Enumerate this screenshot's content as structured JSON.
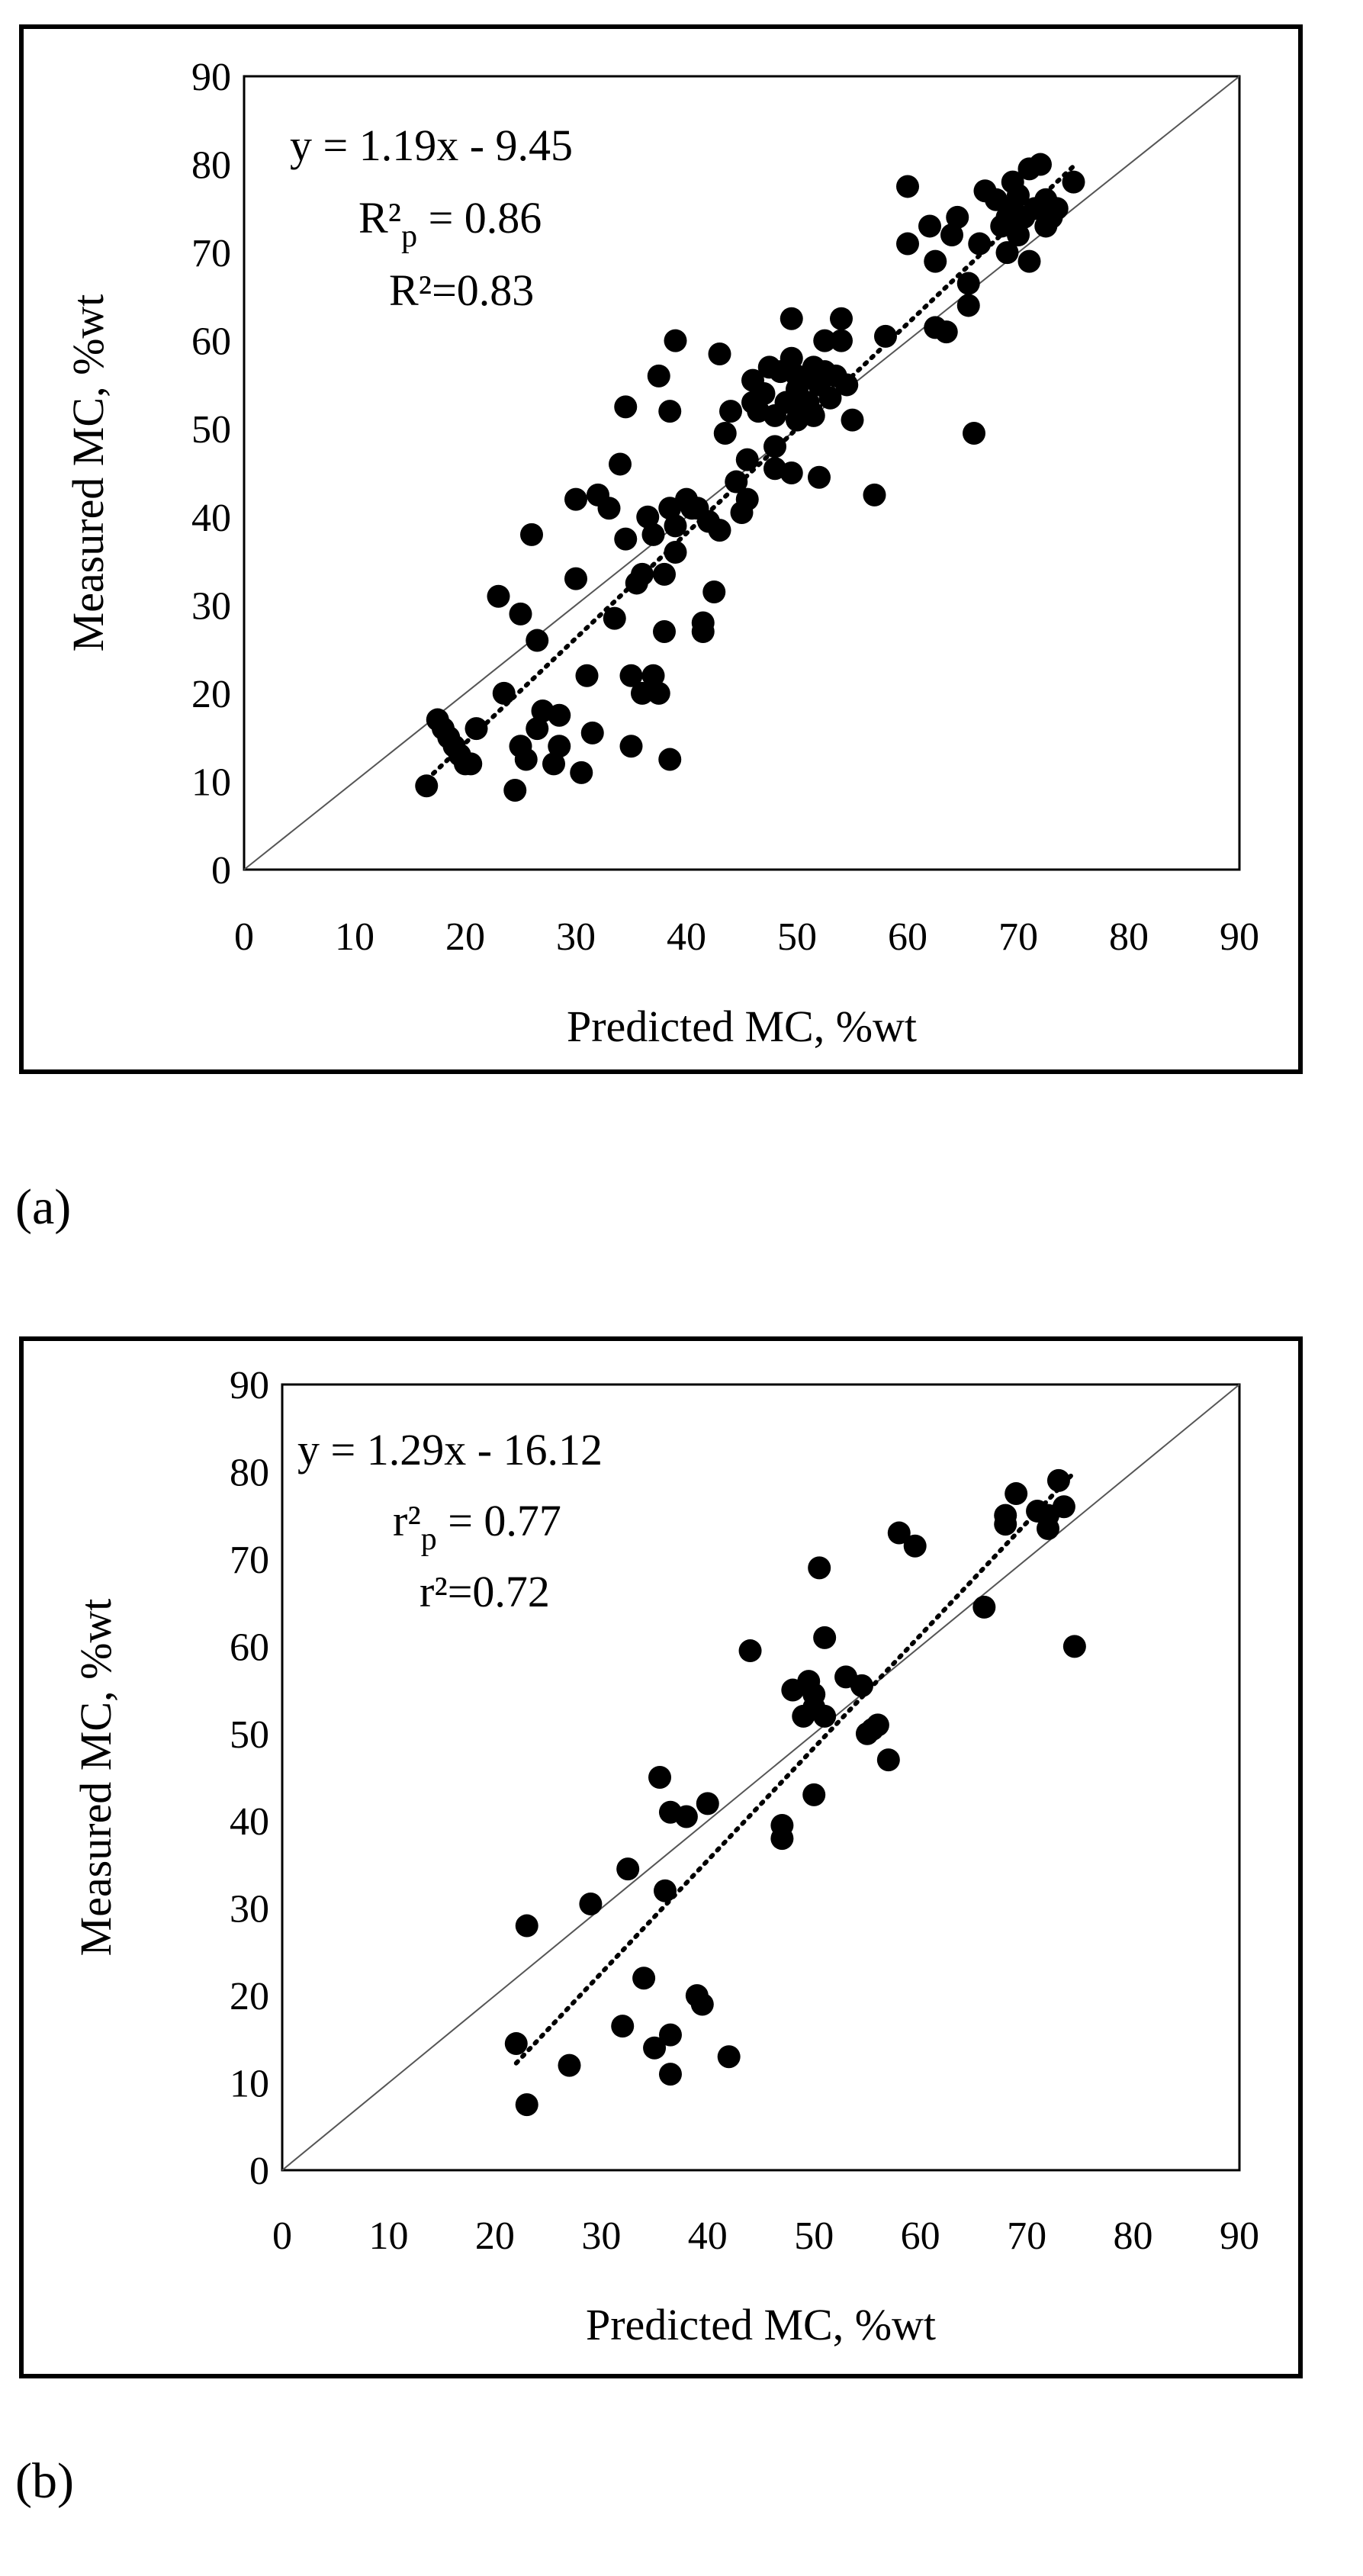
{
  "figure_labels": [
    "(a)",
    "(b)"
  ],
  "chart_data": [
    {
      "type": "scatter",
      "title": "",
      "xlabel": "Predicted MC, %wt",
      "ylabel": "Measured MC, %wt",
      "xlim": [
        0,
        90
      ],
      "ylim": [
        0,
        90
      ],
      "xticks": [
        "0",
        "10",
        "20",
        "30",
        "40",
        "50",
        "60",
        "70",
        "80",
        "90"
      ],
      "yticks": [
        "0",
        "10",
        "20",
        "30",
        "40",
        "50",
        "60",
        "70",
        "80",
        "90"
      ],
      "annotation_lines": [
        {
          "main": "y = 1.19x - 9.45"
        },
        {
          "main": "R²",
          "sub": "p",
          "rest": " = 0.86"
        },
        {
          "main": "R²=0.83"
        }
      ],
      "identity_line": [
        [
          0,
          0
        ],
        [
          90,
          90
        ]
      ],
      "trendline": {
        "slope": 1.19,
        "intercept": -9.45,
        "x_range": [
          16.5,
          75
        ]
      },
      "points": [
        [
          16.5,
          9.5
        ],
        [
          17.5,
          17
        ],
        [
          18,
          16
        ],
        [
          18.5,
          15
        ],
        [
          19,
          14
        ],
        [
          19.5,
          13
        ],
        [
          20,
          12
        ],
        [
          20.5,
          12
        ],
        [
          21,
          16
        ],
        [
          23,
          31
        ],
        [
          23.5,
          20
        ],
        [
          24.5,
          9
        ],
        [
          25,
          14
        ],
        [
          25,
          29
        ],
        [
          25.5,
          12.5
        ],
        [
          26,
          38
        ],
        [
          26.5,
          16
        ],
        [
          26.5,
          26
        ],
        [
          27,
          18
        ],
        [
          28,
          12
        ],
        [
          28.5,
          14
        ],
        [
          28.5,
          17.5
        ],
        [
          30,
          33
        ],
        [
          30,
          42
        ],
        [
          30.5,
          11
        ],
        [
          31,
          22
        ],
        [
          31.5,
          15.5
        ],
        [
          32,
          42.5
        ],
        [
          33,
          41
        ],
        [
          33.5,
          28.5
        ],
        [
          34,
          46
        ],
        [
          34.5,
          52.5
        ],
        [
          34.5,
          37.5
        ],
        [
          35,
          14
        ],
        [
          35,
          22
        ],
        [
          35.5,
          32.5
        ],
        [
          36,
          33.5
        ],
        [
          36,
          20
        ],
        [
          36.5,
          40
        ],
        [
          37,
          22
        ],
        [
          37,
          38
        ],
        [
          37.5,
          56
        ],
        [
          37.5,
          20
        ],
        [
          38,
          33.5
        ],
        [
          38,
          27
        ],
        [
          38.5,
          52
        ],
        [
          38.5,
          12.5
        ],
        [
          38.5,
          41
        ],
        [
          39,
          36
        ],
        [
          39,
          39
        ],
        [
          39,
          60
        ],
        [
          40,
          42
        ],
        [
          40.5,
          41
        ],
        [
          41,
          41
        ],
        [
          41.5,
          28
        ],
        [
          41.5,
          27
        ],
        [
          42,
          39.5
        ],
        [
          42.5,
          31.5
        ],
        [
          43,
          38.5
        ],
        [
          43,
          58.5
        ],
        [
          43.5,
          49.5
        ],
        [
          44,
          52
        ],
        [
          44.5,
          44
        ],
        [
          45,
          40.5
        ],
        [
          45.5,
          42
        ],
        [
          45.5,
          46.5
        ],
        [
          46,
          53
        ],
        [
          46,
          55.5
        ],
        [
          46.5,
          52
        ],
        [
          47,
          54
        ],
        [
          47.5,
          57
        ],
        [
          48,
          48
        ],
        [
          48,
          51.5
        ],
        [
          48,
          45.5
        ],
        [
          48.5,
          56.5
        ],
        [
          49,
          53
        ],
        [
          49.5,
          62.5
        ],
        [
          49.5,
          58
        ],
        [
          49.5,
          45
        ],
        [
          50,
          56
        ],
        [
          50,
          51
        ],
        [
          50,
          54.5
        ],
        [
          50.5,
          52
        ],
        [
          51,
          56
        ],
        [
          51,
          53
        ],
        [
          51.5,
          57
        ],
        [
          51.5,
          51.5
        ],
        [
          52,
          44.5
        ],
        [
          52,
          55
        ],
        [
          52.5,
          60
        ],
        [
          52.5,
          56.5
        ],
        [
          53,
          53.5
        ],
        [
          53.5,
          56
        ],
        [
          54,
          60
        ],
        [
          54,
          62.5
        ],
        [
          54.5,
          55
        ],
        [
          55,
          51
        ],
        [
          57,
          42.5
        ],
        [
          58,
          60.5
        ],
        [
          60,
          77.5
        ],
        [
          60,
          71
        ],
        [
          62,
          73
        ],
        [
          62.5,
          69
        ],
        [
          62.5,
          61.5
        ],
        [
          63.5,
          61
        ],
        [
          64,
          72
        ],
        [
          64.5,
          74
        ],
        [
          65.5,
          64
        ],
        [
          65.5,
          66.5
        ],
        [
          66,
          49.5
        ],
        [
          66.5,
          71
        ],
        [
          67,
          77
        ],
        [
          68,
          76
        ],
        [
          68.5,
          73
        ],
        [
          69,
          74
        ],
        [
          69,
          70
        ],
        [
          69.5,
          75
        ],
        [
          69.5,
          78
        ],
        [
          70,
          72
        ],
        [
          70,
          76.5
        ],
        [
          70.5,
          74
        ],
        [
          71,
          69
        ],
        [
          71,
          79.5
        ],
        [
          71.5,
          75
        ],
        [
          72,
          80
        ],
        [
          72.5,
          73
        ],
        [
          72.5,
          76
        ],
        [
          73,
          74
        ],
        [
          73.5,
          75
        ],
        [
          75,
          78
        ]
      ]
    },
    {
      "type": "scatter",
      "title": "",
      "xlabel": "Predicted MC, %wt",
      "ylabel": "Measured MC, %wt",
      "xlim": [
        0,
        90
      ],
      "ylim": [
        0,
        90
      ],
      "xticks": [
        "0",
        "10",
        "20",
        "30",
        "40",
        "50",
        "60",
        "70",
        "80",
        "90"
      ],
      "yticks": [
        "0",
        "10",
        "20",
        "30",
        "40",
        "50",
        "60",
        "70",
        "80",
        "90"
      ],
      "annotation_lines": [
        {
          "main": "y = 1.29x - 16.12"
        },
        {
          "main": "r²",
          "sub": "p",
          "rest": " = 0.77"
        },
        {
          "main": "r²=0.72"
        }
      ],
      "identity_line": [
        [
          0,
          0
        ],
        [
          90,
          90
        ]
      ],
      "trendline": {
        "slope": 1.29,
        "intercept": -16.12,
        "x_range": [
          22,
          74.5
        ]
      },
      "points": [
        [
          22,
          14.5
        ],
        [
          23,
          7.5
        ],
        [
          23,
          28
        ],
        [
          27,
          12
        ],
        [
          29,
          30.5
        ],
        [
          32,
          16.5
        ],
        [
          32.5,
          34.5
        ],
        [
          34,
          22
        ],
        [
          35,
          14
        ],
        [
          35.5,
          45
        ],
        [
          36,
          32
        ],
        [
          36.5,
          11
        ],
        [
          36.5,
          15.5
        ],
        [
          36.5,
          41
        ],
        [
          38,
          40.5
        ],
        [
          39,
          20
        ],
        [
          39.5,
          19
        ],
        [
          40,
          42
        ],
        [
          42,
          13
        ],
        [
          44,
          59.5
        ],
        [
          47,
          38
        ],
        [
          47,
          39.5
        ],
        [
          48,
          55
        ],
        [
          49,
          52
        ],
        [
          49.5,
          56
        ],
        [
          50,
          54.5
        ],
        [
          50,
          53
        ],
        [
          50,
          43
        ],
        [
          50.5,
          69
        ],
        [
          51,
          61
        ],
        [
          51,
          52
        ],
        [
          53,
          56.5
        ],
        [
          54.5,
          55.5
        ],
        [
          55,
          50
        ],
        [
          55.5,
          50.5
        ],
        [
          56,
          51
        ],
        [
          57,
          47
        ],
        [
          58,
          73
        ],
        [
          59.5,
          71.5
        ],
        [
          66,
          64.5
        ],
        [
          68,
          74
        ],
        [
          68,
          75
        ],
        [
          69,
          77.5
        ],
        [
          71,
          75.5
        ],
        [
          72,
          73.5
        ],
        [
          72,
          75
        ],
        [
          73,
          79
        ],
        [
          73.5,
          76
        ],
        [
          74.5,
          60
        ]
      ]
    }
  ]
}
